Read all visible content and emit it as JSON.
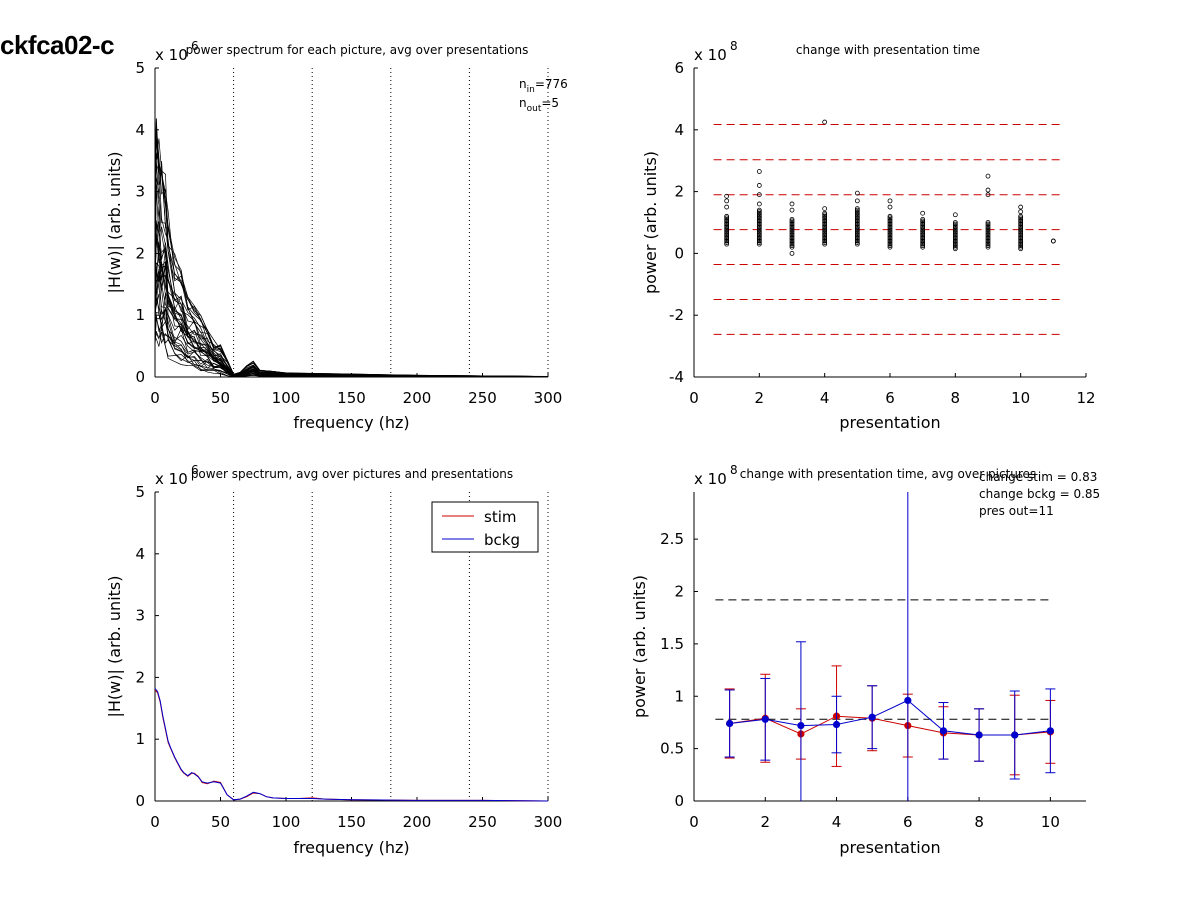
{
  "figure": {
    "title": "ckfca02-c"
  },
  "chart_data": [
    {
      "type": "line",
      "title": "power spectrum for each picture, avg over presentations",
      "xlabel": "frequency (hz)",
      "ylabel": "|H(w)| (arb. units)",
      "xlim": [
        0,
        300
      ],
      "ylim": [
        0,
        5
      ],
      "y_multiplier": "x 10",
      "y_exponent": "6",
      "xticks": [
        "0",
        "50",
        "100",
        "150",
        "200",
        "250",
        "300"
      ],
      "yticks": [
        "0",
        "1",
        "2",
        "3",
        "4",
        "5"
      ],
      "vlines_dotted": [
        60,
        120,
        180,
        240,
        300
      ],
      "annotations": {
        "n_in": "776",
        "n_out": "5",
        "n_label": "n",
        "in_sub": "in",
        "out_sub": "out"
      },
      "series_color": "#000000",
      "envelope": {
        "x": [
          0,
          1,
          3,
          5,
          8,
          10,
          15,
          20,
          25,
          30,
          35,
          40,
          45,
          50,
          55,
          60,
          65,
          70,
          75,
          80,
          90,
          100,
          120,
          150,
          200,
          250,
          300
        ],
        "low": [
          0.5,
          0.5,
          0.45,
          0.4,
          0.35,
          0.3,
          0.25,
          0.2,
          0.15,
          0.12,
          0.1,
          0.08,
          0.06,
          0.05,
          0.02,
          0.0,
          0.0,
          0.01,
          0.02,
          0.01,
          0.01,
          0.005,
          0.005,
          0.003,
          0.0,
          0.0,
          0.0
        ],
        "high": [
          3.0,
          4.2,
          4.1,
          3.6,
          3.3,
          2.7,
          2.0,
          1.8,
          1.3,
          1.2,
          1.0,
          0.85,
          0.6,
          0.55,
          0.3,
          0.05,
          0.08,
          0.2,
          0.28,
          0.12,
          0.1,
          0.07,
          0.06,
          0.05,
          0.03,
          0.02,
          0.01
        ]
      },
      "traces": 40
    },
    {
      "type": "scatter",
      "title": "change with presentation time",
      "xlabel": "presentation",
      "ylabel": "power (arb. units)",
      "xlim": [
        0,
        12
      ],
      "ylim": [
        -4,
        6
      ],
      "y_multiplier": "x 10",
      "y_exponent": "8",
      "xticks": [
        "0",
        "2",
        "4",
        "6",
        "8",
        "10",
        "12"
      ],
      "yticks": [
        "-4",
        "-2",
        "0",
        "2",
        "4",
        "6"
      ],
      "hlines_dashed": [
        4.17,
        3.03,
        1.9,
        0.77,
        -0.36,
        -1.49,
        -2.62
      ],
      "hline_color": "#cc0000",
      "columns": [
        {
          "x": 1,
          "min": 0.3,
          "max": 1.2,
          "outliers": [
            1.5,
            1.7,
            1.85
          ]
        },
        {
          "x": 2,
          "min": 0.3,
          "max": 1.4,
          "outliers": [
            1.6,
            1.9,
            2.2,
            2.65
          ]
        },
        {
          "x": 3,
          "min": 0.2,
          "max": 1.1,
          "outliers": [
            0.0,
            1.4,
            1.6
          ]
        },
        {
          "x": 4,
          "min": 0.3,
          "max": 1.3,
          "outliers": [
            1.45,
            4.25
          ]
        },
        {
          "x": 5,
          "min": 0.3,
          "max": 1.45,
          "outliers": [
            1.7,
            1.95
          ]
        },
        {
          "x": 6,
          "min": 0.2,
          "max": 1.2,
          "outliers": [
            1.5,
            1.7
          ]
        },
        {
          "x": 7,
          "min": 0.2,
          "max": 1.1,
          "outliers": [
            1.3
          ]
        },
        {
          "x": 8,
          "min": 0.15,
          "max": 1.0,
          "outliers": [
            1.25
          ]
        },
        {
          "x": 9,
          "min": 0.2,
          "max": 1.0,
          "outliers": [
            1.9,
            2.05,
            2.5
          ]
        },
        {
          "x": 10,
          "min": 0.15,
          "max": 1.2,
          "outliers": [
            1.35,
            1.5
          ]
        },
        {
          "x": 11,
          "min": 0.4,
          "max": 0.4,
          "outliers": []
        }
      ]
    },
    {
      "type": "line",
      "title": "power spectrum, avg over pictures and presentations",
      "xlabel": "frequency (hz)",
      "ylabel": "|H(w)| (arb. units)",
      "xlim": [
        0,
        300
      ],
      "ylim": [
        0,
        5
      ],
      "y_multiplier": "x 10",
      "y_exponent": "6",
      "xticks": [
        "0",
        "50",
        "100",
        "150",
        "200",
        "250",
        "300"
      ],
      "yticks": [
        "0",
        "1",
        "2",
        "3",
        "4",
        "5"
      ],
      "vlines_dotted": [
        60,
        120,
        180,
        240,
        300
      ],
      "legend": {
        "placement": "top-right"
      },
      "x": [
        0,
        2,
        4,
        6,
        8,
        10,
        12,
        15,
        18,
        20,
        22,
        25,
        28,
        30,
        33,
        36,
        40,
        45,
        50,
        55,
        60,
        65,
        70,
        75,
        80,
        85,
        90,
        100,
        110,
        120,
        130,
        150,
        180,
        200,
        250,
        300
      ],
      "series": [
        {
          "name": "stim",
          "color": "#cc0000",
          "values": [
            1.8,
            1.75,
            1.6,
            1.35,
            1.15,
            0.95,
            0.85,
            0.7,
            0.58,
            0.5,
            0.45,
            0.4,
            0.45,
            0.45,
            0.4,
            0.3,
            0.28,
            0.32,
            0.3,
            0.1,
            0.02,
            0.03,
            0.07,
            0.13,
            0.12,
            0.07,
            0.05,
            0.04,
            0.04,
            0.05,
            0.03,
            0.02,
            0.015,
            0.01,
            0.01,
            0.0
          ]
        },
        {
          "name": "bckg",
          "color": "#0000cc",
          "values": [
            1.82,
            1.77,
            1.62,
            1.37,
            1.17,
            0.97,
            0.86,
            0.71,
            0.59,
            0.51,
            0.46,
            0.41,
            0.46,
            0.44,
            0.39,
            0.31,
            0.29,
            0.31,
            0.29,
            0.1,
            0.02,
            0.03,
            0.08,
            0.14,
            0.12,
            0.07,
            0.05,
            0.04,
            0.04,
            0.04,
            0.03,
            0.02,
            0.015,
            0.01,
            0.01,
            0.0
          ]
        }
      ]
    },
    {
      "type": "line",
      "title": "change with presentation time, avg over pictures",
      "xlabel": "presentation",
      "ylabel": "power (arb. units)",
      "xlim": [
        0,
        11
      ],
      "ylim": [
        0,
        2.95
      ],
      "y_multiplier": "x 10",
      "y_exponent": "8",
      "xticks": [
        "0",
        "2",
        "4",
        "6",
        "8",
        "10"
      ],
      "ytick_values": [
        0,
        0.5,
        1,
        1.5,
        2,
        2.5
      ],
      "yticks": [
        "0",
        "0.5",
        "1",
        "1.5",
        "2",
        "2.5"
      ],
      "annotations": [
        "change stim = 0.83",
        "change bckg = 0.85",
        "pres out=11"
      ],
      "hlines_dashed": [
        1.92,
        0.78
      ],
      "hline_color": "#000000",
      "x": [
        1,
        2,
        3,
        4,
        5,
        6,
        7,
        8,
        9,
        10
      ],
      "series": [
        {
          "name": "stim",
          "color": "#cc0000",
          "values": [
            0.74,
            0.79,
            0.64,
            0.81,
            0.79,
            0.72,
            0.65,
            0.63,
            0.63,
            0.66
          ],
          "err": [
            0.33,
            0.42,
            0.24,
            0.48,
            0.31,
            0.3,
            0.25,
            0.25,
            0.38,
            0.3
          ]
        },
        {
          "name": "bckg",
          "color": "#0000cc",
          "values": [
            0.74,
            0.78,
            0.72,
            0.73,
            0.8,
            0.96,
            0.67,
            0.63,
            0.63,
            0.67
          ],
          "err": [
            0.32,
            0.39,
            0.8,
            0.27,
            0.3,
            2.0,
            0.27,
            0.25,
            0.42,
            0.4
          ]
        }
      ]
    }
  ]
}
